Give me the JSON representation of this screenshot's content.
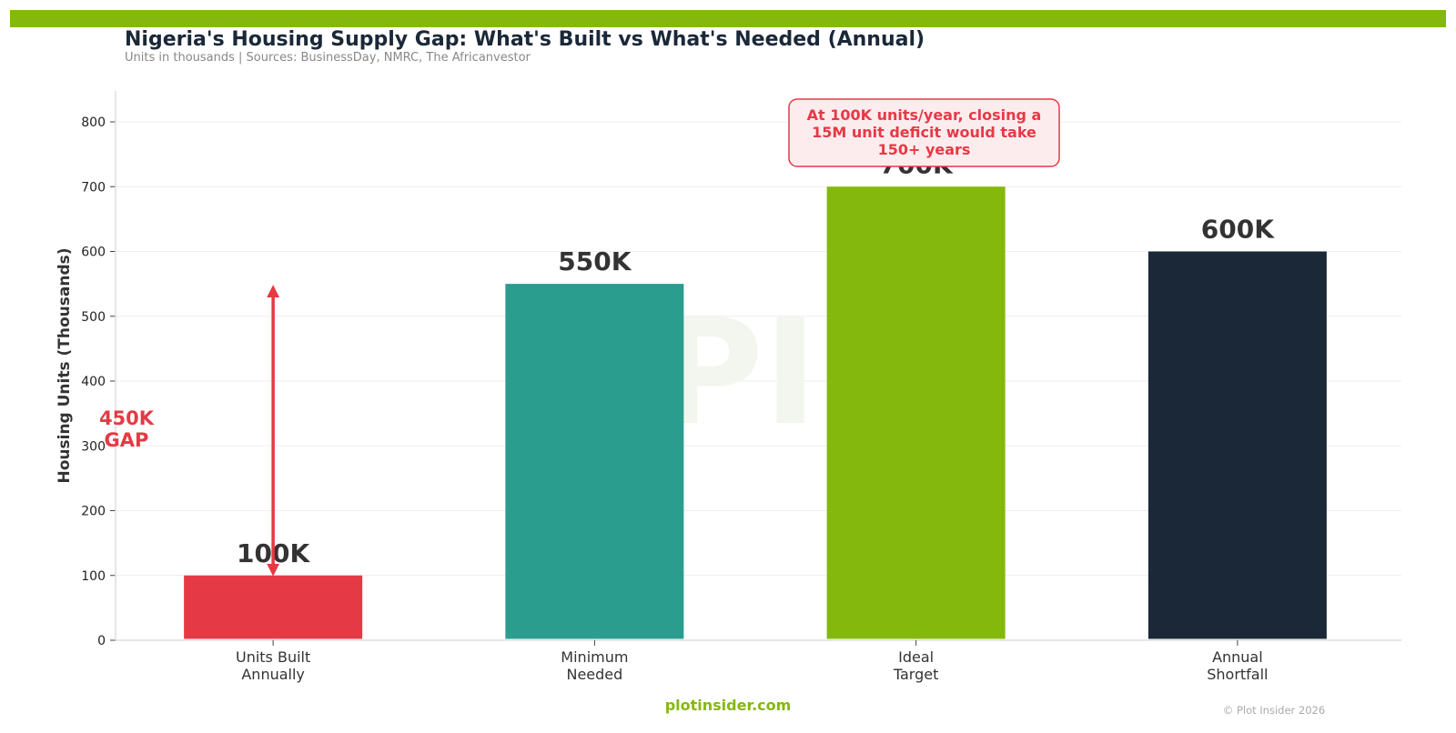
{
  "header": {
    "accent_color": "#84b80c",
    "title": "Nigeria's Housing Supply Gap: What's Built vs What's Needed (Annual)",
    "subtitle": "Units in thousands  |  Sources: BusinessDay, NMRC, The Africanvestor"
  },
  "chart_data": {
    "type": "bar",
    "categories": [
      "Units Built\nAnnually",
      "Minimum\nNeeded",
      "Ideal\nTarget",
      "Annual\nShortfall"
    ],
    "values": [
      100,
      550,
      700,
      600
    ],
    "value_labels": [
      "100K",
      "550K",
      "700K",
      "600K"
    ],
    "colors": [
      "#e63946",
      "#2a9d8f",
      "#84b80c",
      "#1b2838"
    ],
    "ylabel": "Housing Units (Thousands)",
    "xlabel": "",
    "ylim": [
      0,
      850
    ],
    "yticks": [
      0,
      100,
      200,
      300,
      400,
      500,
      600,
      700,
      800
    ],
    "grid": true,
    "annotations": {
      "gap_label": "450K\nGAP",
      "gap_from": 100,
      "gap_to": 550,
      "gap_color": "#e63946",
      "callout_text": "At 100K units/year, closing a\n15M unit deficit would take\n150+ years",
      "callout_color": "#e63946",
      "callout_bg": "#fdecee"
    },
    "watermark": "PI"
  },
  "footer": {
    "brand": "plotinsider.com",
    "brand_color": "#84b80c",
    "copyright": "© Plot Insider 2026"
  }
}
